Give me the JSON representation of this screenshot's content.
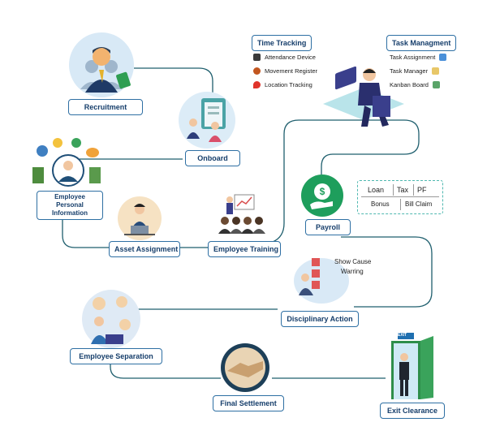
{
  "stages": {
    "recruitment": "Recruitment",
    "onboard": "Onboard",
    "employee_personal_information": "Employee Personal Information",
    "asset_assignment": "Asset Assignment",
    "employee_training": "Employee Training",
    "payroll": "Payroll",
    "disciplinary_action": "Disciplinary Action",
    "employee_separation": "Employee Separation",
    "final_settlement": "Final Settlement",
    "exit_clearance": "Exit Clearance"
  },
  "time_tracking": {
    "title": "Time Tracking",
    "items": [
      "Attendance Device",
      "Movement Register",
      "Location Tracking"
    ]
  },
  "task_management": {
    "title": "Task Managment",
    "items": [
      "Task Assignment",
      "Task Manager",
      "Kanban Board"
    ]
  },
  "payroll_components": {
    "row1": [
      "Loan",
      "Tax",
      "PF"
    ],
    "row2": [
      "Bonus",
      "Bill Claim"
    ]
  },
  "disciplinary_notes": [
    "Show Cause",
    "Warring"
  ],
  "exit_sign": "EXIT",
  "colors": {
    "line": "#1f5f6e",
    "label_border": "#2e6fa3",
    "label_text": "#163e6b",
    "payroll_green": "#1e9e5c",
    "dashed_border": "#4fb8b0"
  }
}
